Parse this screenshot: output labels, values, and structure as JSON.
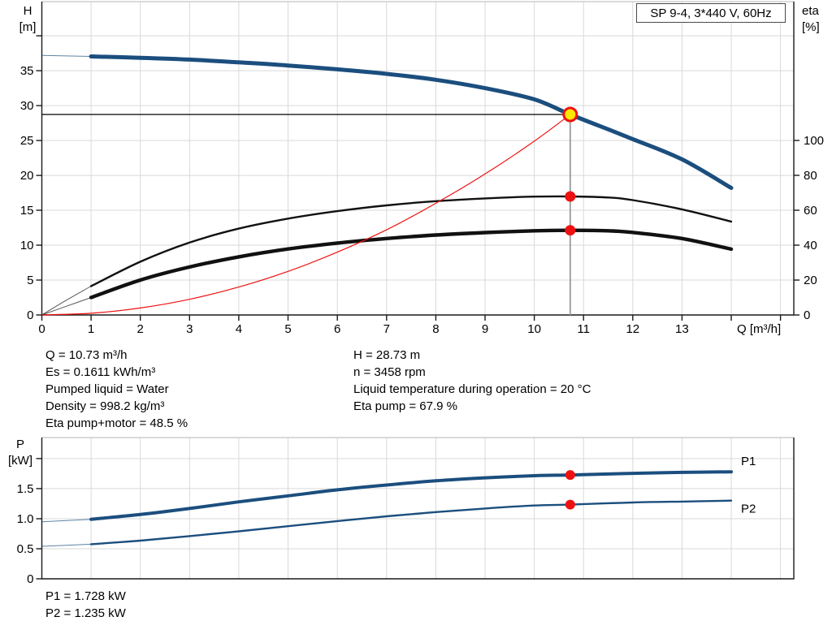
{
  "title_box": {
    "text": "SP 9-4, 3*440 V, 60Hz"
  },
  "colors": {
    "curve_blue": "#1b4e7e",
    "curve_black": "#111111",
    "curve_red": "#ee1111",
    "marker_red": "#ee1111",
    "marker_yellow": "#ffe800",
    "grid": "#d9d9d9",
    "axis": "#1a1a1a",
    "frame_light": "#c4c4c4",
    "ref_gray": "#999999"
  },
  "info_block": {
    "left_column": [
      "Q = 10.73 m³/h",
      "Es = 0.1611 kWh/m³",
      "Pumped liquid = Water",
      "Density = 998.2 kg/m³",
      "Eta pump+motor = 48.5 %"
    ],
    "right_column": [
      "H = 28.73 m",
      "n = 3458 rpm",
      "Liquid temperature during operation = 20 °C",
      "Eta pump = 67.9 %"
    ]
  },
  "power_readout": [
    "P1 = 1.728 kW",
    "P2 = 1.235 kW"
  ],
  "chart_data": [
    {
      "id": "head-eta-chart",
      "type": "line",
      "title": "SP 9-4, 3*440 V, 60Hz",
      "x_axis": {
        "label": "Q [m³/h]",
        "min": 0,
        "max": 15.27,
        "tick_values": [
          0,
          1,
          2,
          3,
          4,
          5,
          6,
          7,
          8,
          9,
          10,
          11,
          12,
          13
        ],
        "tick_labels": [
          "0",
          "1",
          "2",
          "3",
          "4",
          "5",
          "6",
          "7",
          "8",
          "9",
          "10",
          "11",
          "12",
          "13"
        ],
        "tick_marks": [
          0,
          1,
          2,
          3,
          4,
          5,
          6,
          7,
          8,
          9,
          10,
          11,
          12,
          13,
          14,
          15
        ],
        "grid_values": [
          1,
          2,
          3,
          4,
          5,
          6,
          7,
          8,
          9,
          10,
          11,
          12,
          13,
          14,
          15
        ]
      },
      "y_left": {
        "label_lines": [
          "H",
          "[m]"
        ],
        "min": 0,
        "max": 44.9,
        "tick_values": [
          0,
          5,
          10,
          15,
          20,
          25,
          30,
          35,
          40
        ],
        "tick_labels": [
          "0",
          "5",
          "10",
          "15",
          "20",
          "25",
          "30",
          "35",
          ""
        ],
        "grid_values": [
          5,
          10,
          15,
          20,
          25,
          30,
          35,
          40
        ]
      },
      "y_right": {
        "label_lines": [
          "eta",
          "[%]"
        ],
        "min": 0,
        "max": 179.5,
        "tick_values": [
          0,
          20,
          40,
          60,
          80,
          100
        ],
        "tick_labels": [
          "0",
          "20",
          "40",
          "60",
          "80",
          "100"
        ]
      },
      "series": [
        {
          "name": "head-curve",
          "axis": "left",
          "color": "#1b4e7e",
          "width": 5,
          "thin_lead_until": 1,
          "points": [
            [
              0,
              37.2
            ],
            [
              1,
              37.05
            ],
            [
              2,
              36.85
            ],
            [
              3,
              36.6
            ],
            [
              4,
              36.2
            ],
            [
              5,
              35.75
            ],
            [
              6,
              35.2
            ],
            [
              7,
              34.55
            ],
            [
              8,
              33.7
            ],
            [
              9,
              32.5
            ],
            [
              10,
              30.9
            ],
            [
              10.73,
              28.73
            ],
            [
              11.5,
              26.6
            ],
            [
              12,
              25.2
            ],
            [
              13,
              22.3
            ],
            [
              14,
              18.2
            ]
          ]
        },
        {
          "name": "eta-pump-curve",
          "axis": "right",
          "color": "#111111",
          "width": 2.4,
          "thin_lead_until": 1,
          "points": [
            [
              0,
              0
            ],
            [
              0.5,
              8.5
            ],
            [
              1,
              16.5
            ],
            [
              2,
              30.5
            ],
            [
              3,
              41.5
            ],
            [
              4,
              49.5
            ],
            [
              5,
              55.2
            ],
            [
              6,
              59.5
            ],
            [
              7,
              62.8
            ],
            [
              8,
              65.2
            ],
            [
              9,
              66.8
            ],
            [
              10,
              67.8
            ],
            [
              10.73,
              67.9
            ],
            [
              11.5,
              67.3
            ],
            [
              12,
              65.8
            ],
            [
              13,
              60.5
            ],
            [
              14,
              53.5
            ]
          ]
        },
        {
          "name": "eta-pump-motor-curve",
          "axis": "right",
          "color": "#111111",
          "width": 4.4,
          "thin_lead_until": 1,
          "points": [
            [
              0,
              0
            ],
            [
              0.5,
              5
            ],
            [
              1,
              10
            ],
            [
              2,
              20
            ],
            [
              3,
              27.5
            ],
            [
              4,
              33.3
            ],
            [
              5,
              37.8
            ],
            [
              6,
              41.2
            ],
            [
              7,
              43.8
            ],
            [
              8,
              45.8
            ],
            [
              9,
              47.2
            ],
            [
              10,
              48.2
            ],
            [
              10.73,
              48.5
            ],
            [
              11.5,
              48.2
            ],
            [
              12,
              47.3
            ],
            [
              13,
              43.8
            ],
            [
              14,
              37.7
            ]
          ]
        },
        {
          "name": "system-curve",
          "axis": "left",
          "color": "#ee1111",
          "width": 1.2,
          "points": [
            [
              0,
              0
            ],
            [
              1,
              0.25
            ],
            [
              2,
              1.0
            ],
            [
              3,
              2.25
            ],
            [
              4,
              4.0
            ],
            [
              5,
              6.25
            ],
            [
              6,
              9.0
            ],
            [
              7,
              12.2
            ],
            [
              8,
              16.0
            ],
            [
              9,
              20.2
            ],
            [
              10,
              24.9
            ],
            [
              10.73,
              28.73
            ]
          ]
        }
      ],
      "ref_lines": [
        {
          "orient": "h",
          "axis": "left",
          "value": 28.73,
          "q_from": 0,
          "q_to": 10.73,
          "color": "#000000",
          "width": 1.2
        },
        {
          "orient": "v",
          "axis": "left",
          "q": 10.73,
          "value_from": 0,
          "value_to": 28.73,
          "color": "#999999",
          "width": 1.8
        }
      ],
      "markers": [
        {
          "name": "duty-point-marker",
          "style": "duty",
          "q": 10.73,
          "value": 28.73,
          "axis": "left",
          "fill": "#ffe800",
          "stroke": "#ee1111",
          "r": 8
        },
        {
          "name": "eta-pump-point-marker",
          "style": "dot",
          "q": 10.73,
          "value": 67.9,
          "axis": "right",
          "fill": "#ee1111",
          "r": 6.5
        },
        {
          "name": "eta-pump-motor-point-marker",
          "style": "dot",
          "q": 10.73,
          "value": 48.5,
          "axis": "right",
          "fill": "#ee1111",
          "r": 6.5
        }
      ]
    },
    {
      "id": "power-chart",
      "type": "line",
      "x_axis": {
        "min": 0,
        "max": 15.27,
        "grid_values": [
          1,
          2,
          3,
          4,
          5,
          6,
          7,
          8,
          9,
          10,
          11,
          12,
          13,
          14,
          15
        ]
      },
      "y_left": {
        "label_lines": [
          "P",
          "[kW]"
        ],
        "min": 0,
        "max": 2.35,
        "tick_values": [
          0,
          0.5,
          1,
          1.5,
          2
        ],
        "tick_labels": [
          "0",
          "0.5",
          "1.0",
          "1.5",
          ""
        ],
        "grid_values": [
          0.5,
          1,
          1.5,
          2
        ]
      },
      "series": [
        {
          "name": "p1-curve",
          "label": "P1",
          "label_dy": -13,
          "axis": "left",
          "color": "#1b4e7e",
          "width": 4,
          "thin_lead_until": 1,
          "points": [
            [
              0,
              0.95
            ],
            [
              1,
              0.99
            ],
            [
              2,
              1.07
            ],
            [
              3,
              1.17
            ],
            [
              4,
              1.28
            ],
            [
              5,
              1.38
            ],
            [
              6,
              1.48
            ],
            [
              7,
              1.56
            ],
            [
              8,
              1.63
            ],
            [
              9,
              1.68
            ],
            [
              10,
              1.715
            ],
            [
              10.73,
              1.728
            ],
            [
              12,
              1.755
            ],
            [
              13,
              1.77
            ],
            [
              14,
              1.78
            ]
          ]
        },
        {
          "name": "p2-curve",
          "label": "P2",
          "label_dy": 10,
          "axis": "left",
          "color": "#1b4e7e",
          "width": 2.4,
          "thin_lead_until": 1,
          "points": [
            [
              0,
              0.54
            ],
            [
              1,
              0.575
            ],
            [
              2,
              0.635
            ],
            [
              3,
              0.71
            ],
            [
              4,
              0.79
            ],
            [
              5,
              0.875
            ],
            [
              6,
              0.96
            ],
            [
              7,
              1.04
            ],
            [
              8,
              1.11
            ],
            [
              9,
              1.17
            ],
            [
              10,
              1.22
            ],
            [
              10.73,
              1.235
            ],
            [
              12,
              1.27
            ],
            [
              13,
              1.285
            ],
            [
              14,
              1.3
            ]
          ]
        }
      ],
      "markers": [
        {
          "name": "p1-point-marker",
          "style": "dot",
          "q": 10.73,
          "value": 1.728,
          "axis": "left",
          "fill": "#ee1111",
          "r": 6
        },
        {
          "name": "p2-point-marker",
          "style": "dot",
          "q": 10.73,
          "value": 1.235,
          "axis": "left",
          "fill": "#ee1111",
          "r": 6
        }
      ]
    }
  ]
}
